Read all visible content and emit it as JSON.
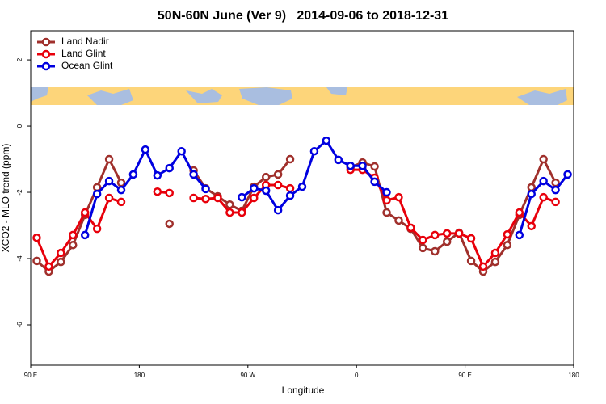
{
  "chart_data": {
    "type": "line",
    "title": "50N-60N June (Ver 9)   2014-09-06 to 2018-12-31",
    "x_label": "Longitude",
    "y_label": "XCO2 - MLO trend (ppm)",
    "x": [
      95,
      105,
      115,
      125,
      135,
      145,
      155,
      165,
      175,
      185,
      195,
      205,
      215,
      225,
      235,
      245,
      255,
      265,
      275,
      285,
      295,
      305,
      315,
      325,
      335,
      345,
      355,
      365,
      375,
      385,
      395,
      405,
      415,
      425,
      435,
      445,
      455,
      465,
      475,
      485,
      495,
      505,
      515,
      525,
      535
    ],
    "series": [
      {
        "name": "Land Nadir",
        "color": "#a0302c",
        "values": [
          -4.07,
          -4.39,
          -4.1,
          -3.59,
          -2.68,
          -1.85,
          -1.0,
          -1.71,
          null,
          null,
          null,
          -2.95,
          null,
          -1.34,
          -1.88,
          -2.12,
          -2.37,
          -2.56,
          -1.83,
          -1.54,
          -1.46,
          -1.0,
          null,
          null,
          null,
          null,
          -1.24,
          -1.1,
          -1.22,
          -2.61,
          -2.85,
          -3.1,
          -3.68,
          -3.78,
          -3.49,
          -3.22,
          -4.07,
          -4.39,
          -4.1,
          -3.59,
          -2.68,
          -1.85,
          -1.0,
          -1.71,
          null
        ]
      },
      {
        "name": "Land Glint",
        "color": "#e8000b",
        "values": [
          -3.37,
          -4.24,
          -3.83,
          -3.29,
          -2.61,
          -3.1,
          -2.17,
          -2.29,
          null,
          null,
          -1.98,
          -2.02,
          null,
          -2.17,
          -2.2,
          -2.17,
          -2.61,
          -2.61,
          -2.17,
          -1.78,
          -1.78,
          -1.88,
          null,
          null,
          null,
          null,
          -1.32,
          -1.32,
          -1.56,
          -2.24,
          -2.15,
          -3.07,
          -3.44,
          -3.29,
          -3.24,
          -3.24,
          -3.39,
          -4.24,
          -3.83,
          -3.27,
          -2.61,
          -3.02,
          -2.15,
          -2.29,
          null
        ]
      },
      {
        "name": "Ocean Glint",
        "color": "#0000e0",
        "values": [
          null,
          null,
          null,
          null,
          -3.29,
          -2.05,
          -1.66,
          -1.93,
          -1.46,
          -0.71,
          -1.49,
          -1.27,
          -0.76,
          -1.46,
          -1.9,
          null,
          null,
          -2.15,
          -1.88,
          -1.95,
          -2.54,
          -2.1,
          -1.83,
          -0.76,
          -0.44,
          -1.02,
          -1.2,
          -1.2,
          -1.68,
          -2.0,
          null,
          null,
          null,
          null,
          null,
          null,
          null,
          null,
          null,
          null,
          -3.29,
          -2.05,
          -1.66,
          -1.93,
          -1.46
        ]
      }
    ],
    "xlim": [
      90,
      540
    ],
    "xticks": [
      {
        "value": 90,
        "label": "90 E"
      },
      180,
      {
        "value": 270,
        "label": "90 W"
      },
      {
        "value": 360,
        "label": "0"
      },
      {
        "value": 450,
        "label": "90 E"
      },
      {
        "value": 540,
        "label": "180"
      }
    ],
    "ylim": [
      -7.22,
      2.88
    ],
    "yticks": [
      2,
      0,
      -2,
      -4,
      -6
    ],
    "legend": "top-left"
  }
}
